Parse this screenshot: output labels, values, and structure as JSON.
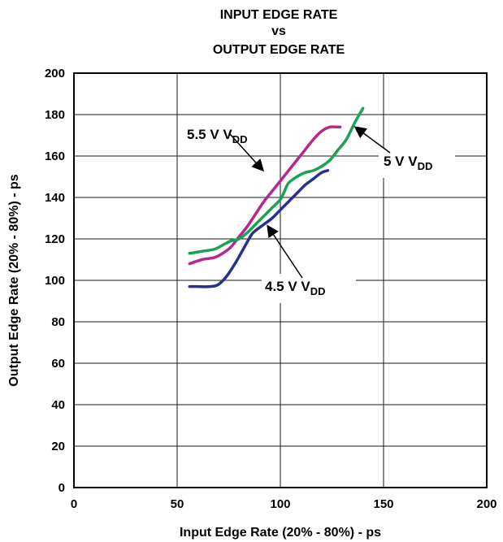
{
  "chart_data": {
    "type": "line",
    "title_lines": [
      "INPUT EDGE RATE",
      "vs",
      "OUTPUT EDGE RATE"
    ],
    "xlabel": "Input Edge Rate (20% - 80%) - ps",
    "ylabel": "Output Edge Rate (20% - 80%) - ps",
    "xlim": [
      0,
      200
    ],
    "ylim": [
      0,
      200
    ],
    "x_ticks": [
      0,
      50,
      100,
      150,
      200
    ],
    "y_ticks": [
      0,
      20,
      40,
      60,
      80,
      100,
      120,
      140,
      160,
      180,
      200
    ],
    "grid": true,
    "legend": "none",
    "series": [
      {
        "key": "vdd_5_5",
        "color": "#b5288e",
        "x": [
          56,
          62,
          68,
          72,
          76,
          80,
          84,
          88,
          92,
          96,
          100,
          104,
          108,
          112,
          116,
          120,
          124,
          127,
          129
        ],
        "y": [
          108,
          110,
          111,
          113,
          116,
          121,
          126,
          132,
          138,
          143,
          148,
          153,
          158,
          163,
          168,
          172,
          174,
          174,
          174
        ]
      },
      {
        "key": "vdd_5",
        "color": "#1aa24f",
        "x": [
          56,
          62,
          68,
          72,
          76,
          80,
          84,
          88,
          92,
          96,
          100,
          102,
          104,
          108,
          112,
          116,
          120,
          124,
          128,
          132,
          136,
          140
        ],
        "y": [
          113,
          114,
          115,
          117,
          119,
          120,
          123,
          127,
          131,
          135,
          139,
          143,
          147,
          150,
          152,
          153,
          155,
          158,
          163,
          168,
          176,
          183
        ]
      },
      {
        "key": "vdd_4_5",
        "color": "#2b2f8c",
        "x": [
          56,
          60,
          66,
          70,
          74,
          78,
          82,
          86,
          88,
          92,
          96,
          100,
          104,
          108,
          112,
          116,
          120,
          123
        ],
        "y": [
          97,
          97,
          97,
          98,
          102,
          108,
          115,
          122,
          124,
          127,
          130,
          134,
          138,
          142,
          146,
          149,
          152,
          153
        ]
      }
    ],
    "annotations": [
      {
        "key": "a55",
        "main": "5.5 V V",
        "sub": "DD"
      },
      {
        "key": "a5",
        "main": "5 V V",
        "sub": "DD"
      },
      {
        "key": "a45",
        "main": "4.5 V V",
        "sub": "DD"
      }
    ]
  }
}
